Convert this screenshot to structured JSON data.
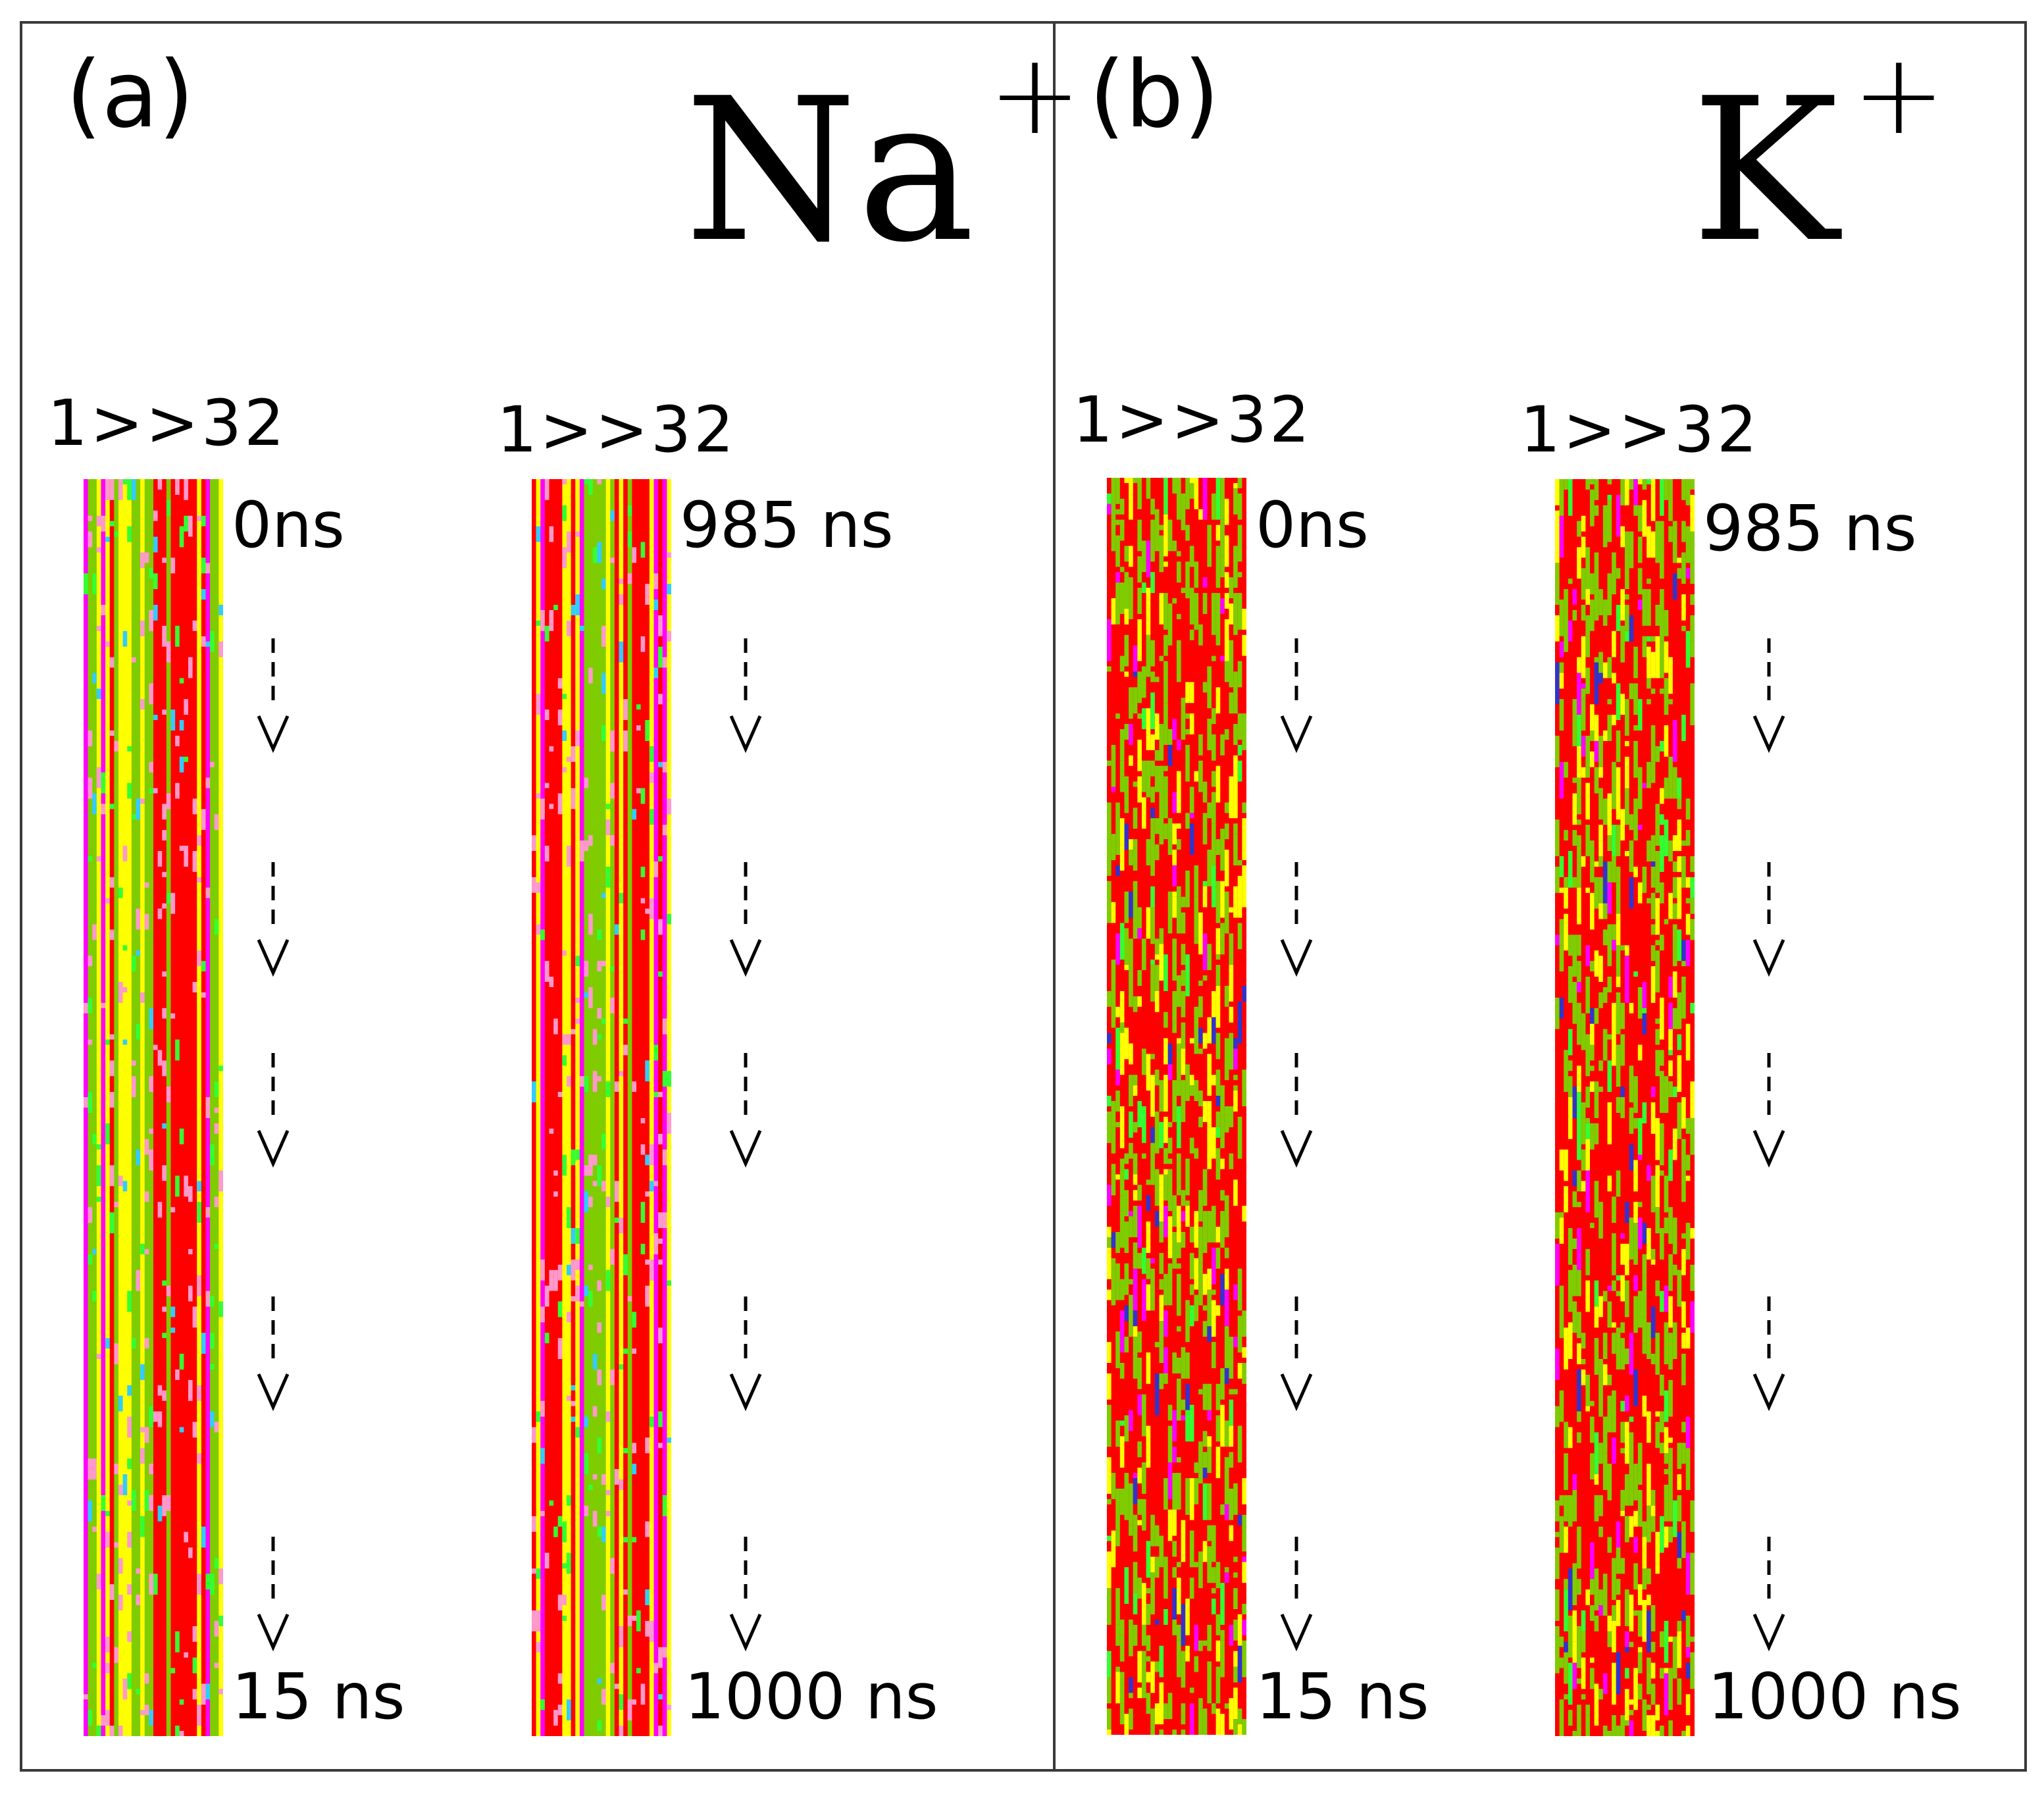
{
  "figure": {
    "panels": [
      {
        "label": "(a)",
        "ion": "Na",
        "charge": "+",
        "strips": [
          {
            "range_label": "1>>32",
            "start_time": "0ns",
            "end_time": "15 ns"
          },
          {
            "range_label": "1>>32",
            "start_time": "985 ns",
            "end_time": "1000 ns"
          }
        ]
      },
      {
        "label": "(b)",
        "ion": "K",
        "charge": "+",
        "strips": [
          {
            "range_label": "1>>32",
            "start_time": "0ns",
            "end_time": "15 ns"
          },
          {
            "range_label": "1>>32",
            "start_time": "985 ns",
            "end_time": "1000 ns"
          }
        ]
      }
    ],
    "colors": {
      "red": "#ff0000",
      "yellow": "#ffff00",
      "green": "#7fcc00",
      "lime": "#33ff33",
      "magenta": "#ff00ff",
      "pink": "#ff99cc",
      "cyan": "#33ccff",
      "blue": "#3333cc",
      "orange": "#ff9900"
    },
    "arrow_icon": "dashed-down-arrow-icon"
  }
}
